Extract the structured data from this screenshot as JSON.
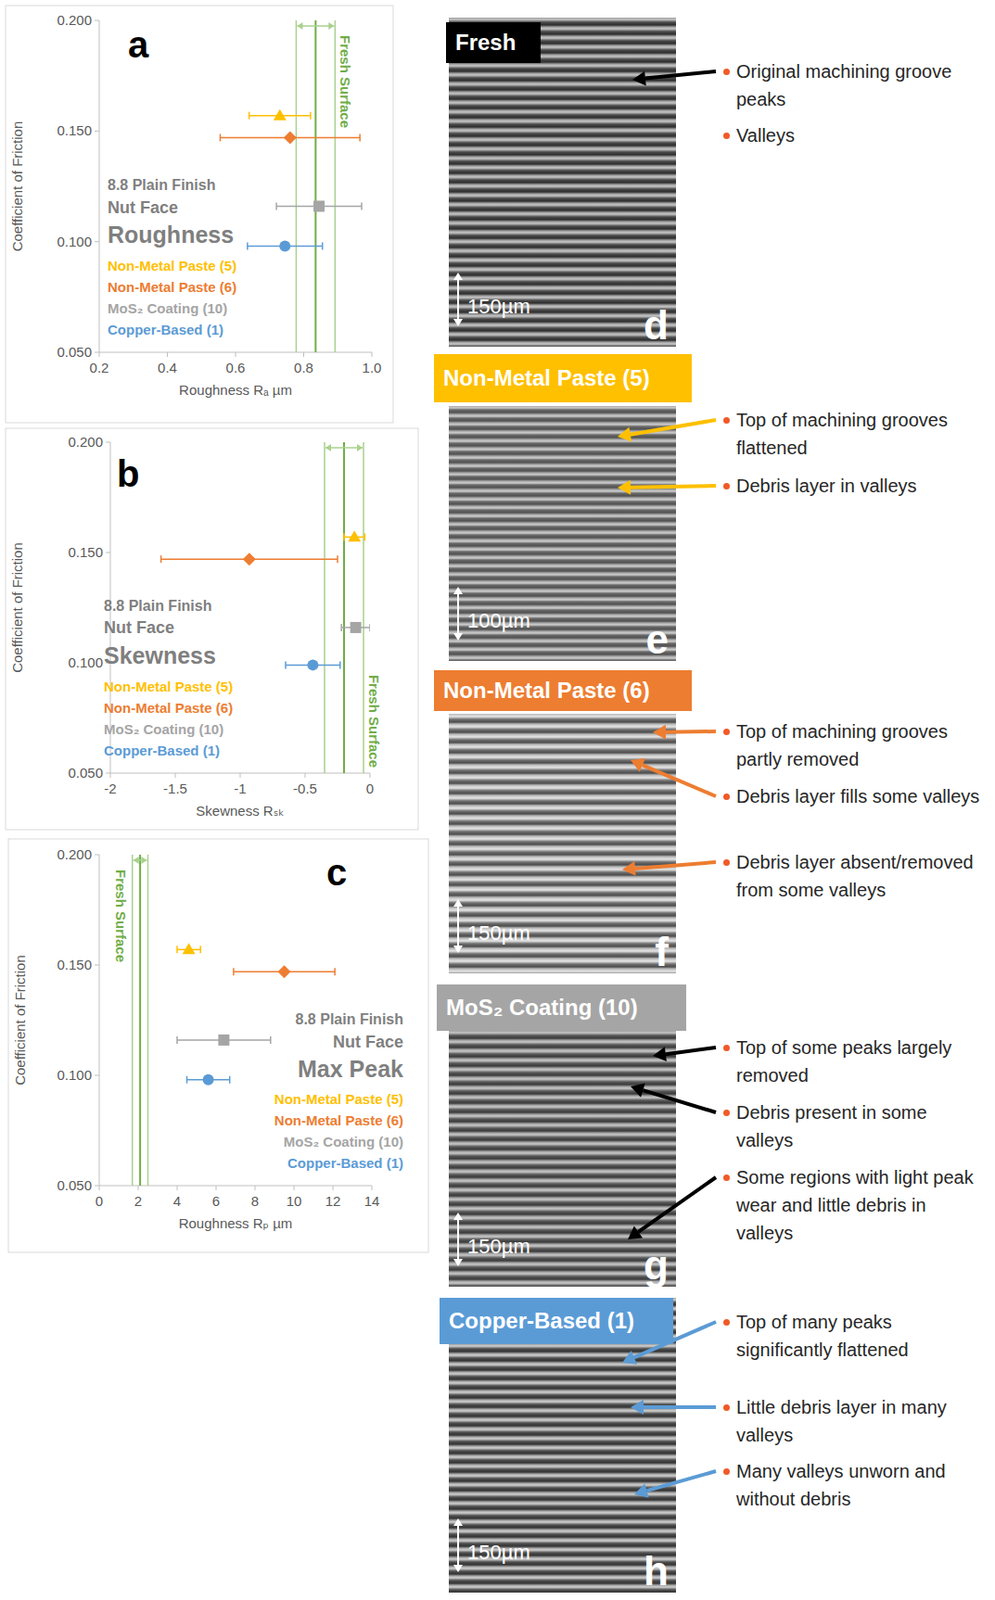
{
  "chart_data": [
    {
      "type": "scatter",
      "panel_label": "a",
      "title": "Roughness",
      "annotations": [
        "8.8 Plain Finish",
        "Nut Face"
      ],
      "x_label": "Roughness Rₐ µm",
      "y_label": "Coefficient of Friction",
      "xlim": [
        0.2,
        1.0
      ],
      "xticks": [
        0.2,
        0.4,
        0.6,
        0.8,
        {
          "value": 1.0,
          "label": "1.0"
        }
      ],
      "ylim": [
        0.05,
        0.2
      ],
      "yticks": [
        {
          "value": 0.05,
          "label": "0.050"
        },
        {
          "value": 0.1,
          "label": "0.100"
        },
        {
          "value": 0.15,
          "label": "0.150"
        },
        {
          "value": 0.2,
          "label": "0.200"
        }
      ],
      "grid": false,
      "legend": "left",
      "reference": {
        "label": "Fresh Surface",
        "value": 0.835,
        "error": 0.057,
        "color": "#70AD47"
      },
      "series": [
        {
          "name": "Non-Metal Paste (5)",
          "color": "#FFC000",
          "marker": "triangle",
          "x": [
            0.73
          ],
          "x_error": [
            0.09
          ],
          "values": [
            0.157
          ]
        },
        {
          "name": "Non-Metal Paste (6)",
          "color": "#ED7D31",
          "marker": "diamond",
          "x": [
            0.76
          ],
          "x_error": [
            0.205
          ],
          "values": [
            0.147
          ]
        },
        {
          "name": "MoS₂ Coating (10)",
          "color": "#A5A5A5",
          "marker": "square",
          "x": [
            0.845
          ],
          "x_error": [
            0.125
          ],
          "values": [
            0.116
          ]
        },
        {
          "name": "Copper-Based (1)",
          "color": "#5B9BD5",
          "marker": "circle",
          "x": [
            0.745
          ],
          "x_error": [
            0.11
          ],
          "values": [
            0.098
          ]
        }
      ]
    },
    {
      "type": "scatter",
      "panel_label": "b",
      "title": "Skewness",
      "annotations": [
        "8.8 Plain Finish",
        "Nut Face"
      ],
      "x_label": "Skewness Rₛₖ",
      "y_label": "Coefficient of Friction",
      "xlim": [
        -2,
        0
      ],
      "xticks": [
        -2,
        -1.5,
        -1,
        -0.5,
        0
      ],
      "ylim": [
        0.05,
        0.2
      ],
      "yticks": [
        {
          "value": 0.05,
          "label": "0.050"
        },
        {
          "value": 0.1,
          "label": "0.100"
        },
        {
          "value": 0.15,
          "label": "0.150"
        },
        {
          "value": 0.2,
          "label": "0.200"
        }
      ],
      "grid": false,
      "legend": "left",
      "reference": {
        "label": "Fresh Surface",
        "value": -0.2,
        "error": 0.15,
        "color": "#70AD47"
      },
      "series": [
        {
          "name": "Non-Metal Paste (5)",
          "color": "#FFC000",
          "marker": "triangle",
          "x": [
            -0.12
          ],
          "x_error": [
            0.08
          ],
          "values": [
            0.157
          ]
        },
        {
          "name": "Non-Metal Paste (6)",
          "color": "#ED7D31",
          "marker": "diamond",
          "x": [
            -0.93
          ],
          "x_error": [
            0.68
          ],
          "values": [
            0.147
          ]
        },
        {
          "name": "MoS₂ Coating (10)",
          "color": "#A5A5A5",
          "marker": "square",
          "x": [
            -0.11
          ],
          "x_error": [
            0.11
          ],
          "values": [
            0.116
          ]
        },
        {
          "name": "Copper-Based (1)",
          "color": "#5B9BD5",
          "marker": "circle",
          "x": [
            -0.44
          ],
          "x_error": [
            0.21
          ],
          "values": [
            0.099
          ]
        }
      ]
    },
    {
      "type": "scatter",
      "panel_label": "c",
      "title": "Max Peak",
      "annotations": [
        "8.8 Plain Finish",
        "Nut Face"
      ],
      "x_label": "Roughness Rₚ µm",
      "y_label": "Coefficient of Friction",
      "xlim": [
        0,
        14
      ],
      "xticks": [
        0,
        2,
        4,
        6,
        8,
        10,
        12,
        14
      ],
      "ylim": [
        0.05,
        0.2
      ],
      "yticks": [
        {
          "value": 0.05,
          "label": "0.050"
        },
        {
          "value": 0.1,
          "label": "0.100"
        },
        {
          "value": 0.15,
          "label": "0.150"
        },
        {
          "value": 0.2,
          "label": "0.200"
        }
      ],
      "grid": false,
      "legend": "right",
      "reference": {
        "label": "Fresh Surface",
        "value": 2.1,
        "error": 0.4,
        "color": "#70AD47"
      },
      "series": [
        {
          "name": "Non-Metal Paste (5)",
          "color": "#FFC000",
          "marker": "triangle",
          "x": [
            4.6
          ],
          "x_error": [
            0.6
          ],
          "values": [
            0.157
          ]
        },
        {
          "name": "Non-Metal Paste (6)",
          "color": "#ED7D31",
          "marker": "diamond",
          "x": [
            9.5
          ],
          "x_error": [
            2.6
          ],
          "values": [
            0.147
          ]
        },
        {
          "name": "MoS₂ Coating (10)",
          "color": "#A5A5A5",
          "marker": "square",
          "x": [
            6.4
          ],
          "x_error": [
            2.4
          ],
          "values": [
            0.116
          ]
        },
        {
          "name": "Copper-Based (1)",
          "color": "#5B9BD5",
          "marker": "circle",
          "x": [
            5.6
          ],
          "x_error": [
            1.1
          ],
          "values": [
            0.098
          ]
        }
      ]
    }
  ],
  "micrographs": [
    {
      "title": "Fresh",
      "letter": "d",
      "scale_bar": "150µm",
      "color": "#000000",
      "annotations": [
        "Original machining groove peaks",
        "Valleys"
      ]
    },
    {
      "title": "Non-Metal Paste (5)",
      "letter": "e",
      "scale_bar": "100µm",
      "color": "#FFC000",
      "annotations": [
        "Top of machining grooves flattened",
        "Debris layer in valleys"
      ]
    },
    {
      "title": "Non-Metal Paste (6)",
      "letter": "f",
      "scale_bar": "150µm",
      "color": "#ED7D31",
      "annotations": [
        "Top of machining grooves partly removed",
        "Debris layer fills some valleys",
        "Debris layer absent/removed from some valleys"
      ]
    },
    {
      "title": "MoS₂ Coating (10)",
      "letter": "g",
      "scale_bar": "150µm",
      "color": "#A5A5A5",
      "annotations": [
        "Top of some peaks largely removed",
        "Debris present in some valleys",
        "Some regions with light peak wear and little debris in valleys"
      ]
    },
    {
      "title": "Copper-Based (1)",
      "letter": "h",
      "scale_bar": "150µm",
      "color": "#5B9BD5",
      "annotations": [
        "Top of many peaks significantly flattened",
        "Little debris layer in many valleys",
        "Many valleys unworn and without debris"
      ]
    }
  ]
}
